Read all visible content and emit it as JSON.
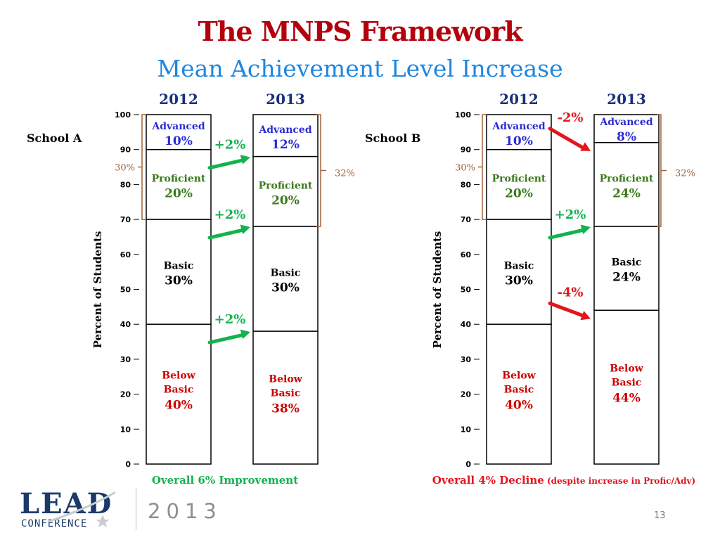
{
  "slide": {
    "title": "The MNPS Framework",
    "subtitle": "Mean Achievement Level Increase",
    "page_number": "13",
    "logo_text": "LEAD",
    "logo_subtext": "CONFERENCE",
    "logo_year": "2013"
  },
  "colors": {
    "advanced": "#2b2bd6",
    "proficient": "#3a7a1a",
    "basic": "#000000",
    "below_basic": "#cc0000",
    "increase": "#14b24e",
    "decrease": "#e3141e",
    "bracket": "#a0643c"
  },
  "chart_data": [
    {
      "type": "bar",
      "school": "School A",
      "ylabel": "Percent of Students",
      "ylim": [
        0,
        100
      ],
      "yticks": [
        0,
        10,
        20,
        30,
        40,
        50,
        60,
        70,
        80,
        90,
        100
      ],
      "stack_order": [
        "Below Basic",
        "Basic",
        "Proficient",
        "Advanced"
      ],
      "columns": [
        {
          "year": "2012",
          "bracket_label": "30%",
          "segments": [
            {
              "key": "advanced",
              "label": "Advanced",
              "value": 10,
              "text": "10%"
            },
            {
              "key": "proficient",
              "label": "Proficient",
              "value": 20,
              "text": "20%"
            },
            {
              "key": "basic",
              "label": "Basic",
              "value": 30,
              "text": "30%"
            },
            {
              "key": "below_basic",
              "label": "Below Basic",
              "value": 40,
              "text": "40%"
            }
          ]
        },
        {
          "year": "2013",
          "bracket_label": "32%",
          "segments": [
            {
              "key": "advanced",
              "label": "Advanced",
              "value": 12,
              "text": "12%"
            },
            {
              "key": "proficient",
              "label": "Proficient",
              "value": 20,
              "text": "20%"
            },
            {
              "key": "basic",
              "label": "Basic",
              "value": 30,
              "text": "30%"
            },
            {
              "key": "below_basic",
              "label": "Below Basic",
              "value": 38,
              "text": "38%"
            }
          ]
        }
      ],
      "changes": [
        {
          "label": "+2%",
          "direction": "up",
          "from_level": 90,
          "to_level": 88
        },
        {
          "label": "+2%",
          "direction": "up",
          "from_level": 70,
          "to_level": 68
        },
        {
          "label": "+2%",
          "direction": "up",
          "from_level": 40,
          "to_level": 38
        }
      ],
      "summary": "Overall 6% Improvement",
      "summary_note": ""
    },
    {
      "type": "bar",
      "school": "School B",
      "ylabel": "Percent of Students",
      "ylim": [
        0,
        100
      ],
      "yticks": [
        0,
        10,
        20,
        30,
        40,
        50,
        60,
        70,
        80,
        90,
        100
      ],
      "stack_order": [
        "Below Basic",
        "Basic",
        "Proficient",
        "Advanced"
      ],
      "columns": [
        {
          "year": "2012",
          "bracket_label": "30%",
          "segments": [
            {
              "key": "advanced",
              "label": "Advanced",
              "value": 10,
              "text": "10%"
            },
            {
              "key": "proficient",
              "label": "Proficient",
              "value": 20,
              "text": "20%"
            },
            {
              "key": "basic",
              "label": "Basic",
              "value": 30,
              "text": "30%"
            },
            {
              "key": "below_basic",
              "label": "Below Basic",
              "value": 40,
              "text": "40%"
            }
          ]
        },
        {
          "year": "2013",
          "bracket_label": "32%",
          "segments": [
            {
              "key": "advanced",
              "label": "Advanced",
              "value": 8,
              "text": "8%"
            },
            {
              "key": "proficient",
              "label": "Proficient",
              "value": 24,
              "text": "24%"
            },
            {
              "key": "basic",
              "label": "Basic",
              "value": 24,
              "text": "24%"
            },
            {
              "key": "below_basic",
              "label": "Below Basic",
              "value": 44,
              "text": "44%"
            }
          ]
        }
      ],
      "changes": [
        {
          "label": "-2%",
          "direction": "down",
          "from_level": 96,
          "to_level": 90
        },
        {
          "label": "+2%",
          "direction": "up",
          "from_level": 65,
          "to_level": 68
        },
        {
          "label": "-4%",
          "direction": "down",
          "from_level": 46,
          "to_level": 42
        }
      ],
      "summary": "Overall 4% Decline",
      "summary_note": "(despite increase in Profic/Adv)"
    }
  ]
}
